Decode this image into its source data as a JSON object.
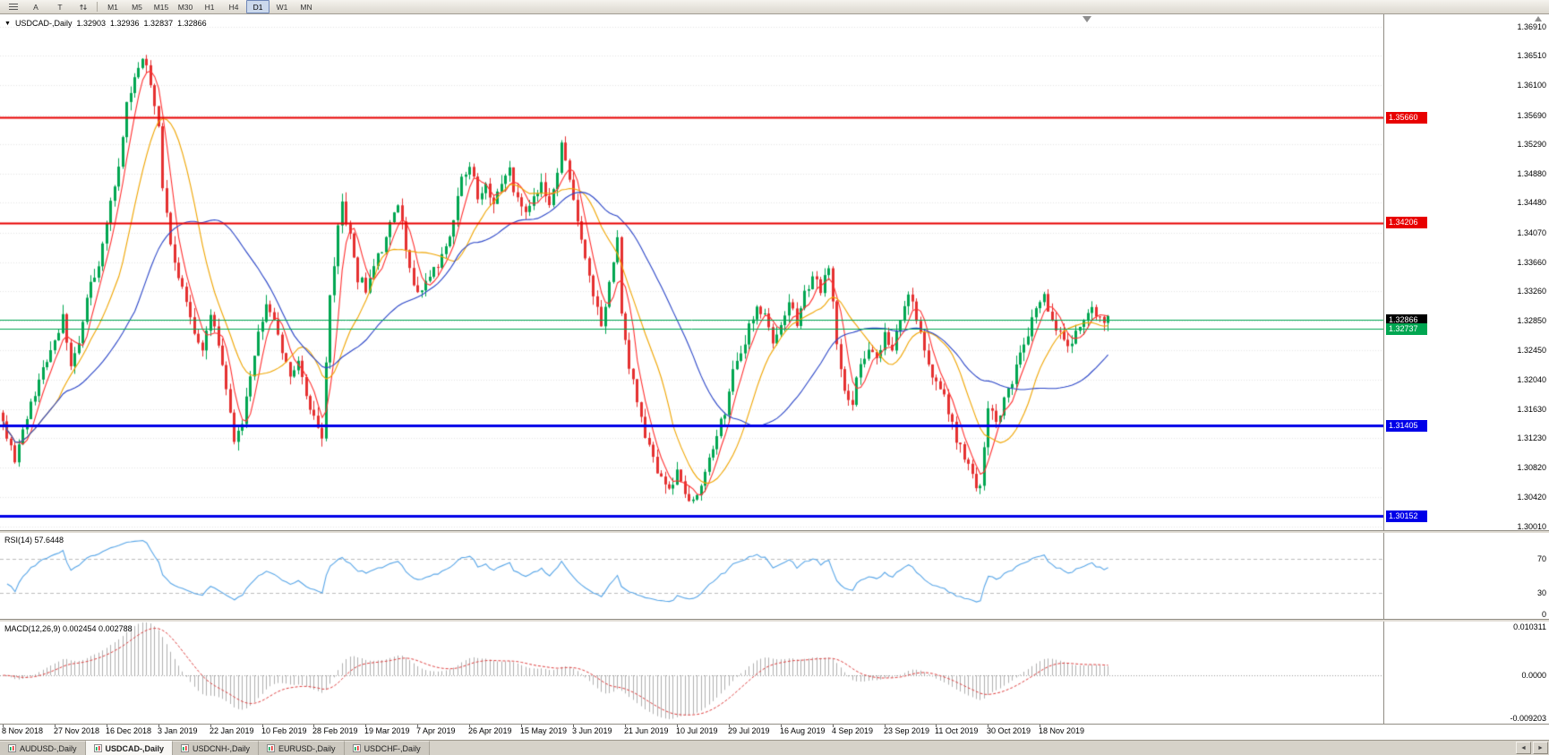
{
  "toolbar": {
    "timeframes": [
      "M1",
      "M5",
      "M15",
      "M30",
      "H1",
      "H4",
      "D1",
      "W1",
      "MN"
    ],
    "active_timeframe": "D1",
    "text_tool_label": "A",
    "type_tool_label": "T"
  },
  "symbol_header": {
    "marker": "▼",
    "symbol": "USDCAD-,Daily",
    "open": "1.32903",
    "high": "1.32936",
    "low": "1.32837",
    "close": "1.32866"
  },
  "price_scale": {
    "ticks": [
      "1.36910",
      "1.36510",
      "1.36100",
      "1.35690",
      "1.35290",
      "1.34880",
      "1.34480",
      "1.34070",
      "1.33660",
      "1.33260",
      "1.32850",
      "1.32450",
      "1.32040",
      "1.31630",
      "1.31230",
      "1.30820",
      "1.30420",
      "1.30010"
    ]
  },
  "indicators": {
    "rsi": {
      "label": "RSI(14) 57.6448",
      "period": 14,
      "levels": [
        "70",
        "30",
        "0"
      ]
    },
    "macd": {
      "label": "MACD(12,26,9) 0.002454 0.002788",
      "scale_max": "0.010311",
      "scale_zero": "0.0000",
      "scale_min": "-0.009203"
    }
  },
  "date_axis": [
    "8 Nov 2018",
    "27 Nov 2018",
    "16 Dec 2018",
    "3 Jan 2019",
    "22 Jan 2019",
    "10 Feb 2019",
    "28 Feb 2019",
    "19 Mar 2019",
    "7 Apr 2019",
    "26 Apr 2019",
    "15 May 2019",
    "3 Jun 2019",
    "21 Jun 2019",
    "10 Jul 2019",
    "29 Jul 2019",
    "16 Aug 2019",
    "4 Sep 2019",
    "23 Sep 2019",
    "11 Oct 2019",
    "30 Oct 2019",
    "18 Nov 2019"
  ],
  "tabs": {
    "items": [
      "AUDUSD-,Daily",
      "USDCAD-,Daily",
      "USDCNH-,Daily",
      "EURUSD-,Daily",
      "USDCHF-,Daily"
    ],
    "active_index": 1
  },
  "chart_data": {
    "type": "candlestick",
    "symbol": "USDCAD",
    "timeframe": "Daily",
    "candle_count": 278,
    "ylim": [
      1.2996,
      1.37083
    ],
    "bull_color": "#00A651",
    "bear_color": "#E53030",
    "grid_color": "#E6E6E6",
    "rsi_color": "#58A6E8",
    "macd_hist_color": "#B0B0B0",
    "macd_signal_color": "#E04040",
    "moving_averages": [
      {
        "name": "fast-ma",
        "period": 5,
        "color": "#FF3131"
      },
      {
        "name": "mid-ma",
        "period": 14,
        "color": "#F0A500"
      },
      {
        "name": "slow-ma",
        "period": 34,
        "color": "#2B46C8"
      }
    ],
    "hlines": [
      {
        "label": "1.35660",
        "price": 1.3566,
        "color": "#E80000",
        "width": 2,
        "badge": true,
        "badge_color": "#E80000"
      },
      {
        "label": "1.34206",
        "price": 1.34206,
        "color": "#E80000",
        "width": 2,
        "badge": true,
        "badge_color": "#E80000"
      },
      {
        "label": "1.32870",
        "price": 1.3287,
        "color": "#00A651",
        "width": 1,
        "badge": false
      },
      {
        "label": "1.32866",
        "price": 1.32866,
        "color": "#000000",
        "width": 0,
        "badge": true,
        "badge_color": "#000000"
      },
      {
        "label": "1.32737",
        "price": 1.32737,
        "color": "#00A651",
        "width": 1,
        "badge": true,
        "badge_color": "#00A651"
      },
      {
        "label": "1.31405",
        "price": 1.31405,
        "color": "#0000E8",
        "width": 3,
        "badge": true,
        "badge_color": "#0000E8"
      },
      {
        "label": "1.30152",
        "price": 1.30152,
        "color": "#0000E8",
        "width": 3,
        "badge": true,
        "badge_color": "#0000E8"
      }
    ],
    "price_anchors": [
      [
        0,
        1.314
      ],
      [
        3,
        1.3095
      ],
      [
        5,
        1.313
      ],
      [
        8,
        1.3185
      ],
      [
        11,
        1.3235
      ],
      [
        13,
        1.3255
      ],
      [
        15,
        1.329
      ],
      [
        17,
        1.3215
      ],
      [
        19,
        1.3255
      ],
      [
        21,
        1.332
      ],
      [
        23,
        1.335
      ],
      [
        25,
        1.3385
      ],
      [
        27,
        1.3445
      ],
      [
        29,
        1.3505
      ],
      [
        31,
        1.358
      ],
      [
        33,
        1.3625
      ],
      [
        35,
        1.365
      ],
      [
        37,
        1.3615
      ],
      [
        39,
        1.356
      ],
      [
        40,
        1.347
      ],
      [
        42,
        1.3395
      ],
      [
        44,
        1.3345
      ],
      [
        46,
        1.3305
      ],
      [
        48,
        1.3265
      ],
      [
        50,
        1.3245
      ],
      [
        52,
        1.3295
      ],
      [
        54,
        1.325
      ],
      [
        56,
        1.3195
      ],
      [
        58,
        1.312
      ],
      [
        60,
        1.3145
      ],
      [
        62,
        1.3205
      ],
      [
        64,
        1.327
      ],
      [
        66,
        1.331
      ],
      [
        68,
        1.328
      ],
      [
        70,
        1.324
      ],
      [
        72,
        1.3215
      ],
      [
        74,
        1.323
      ],
      [
        76,
        1.3185
      ],
      [
        78,
        1.315
      ],
      [
        80,
        1.3125
      ],
      [
        82,
        1.332
      ],
      [
        84,
        1.341
      ],
      [
        85,
        1.3445
      ],
      [
        87,
        1.3405
      ],
      [
        89,
        1.3345
      ],
      [
        91,
        1.333
      ],
      [
        93,
        1.3365
      ],
      [
        95,
        1.3385
      ],
      [
        97,
        1.3425
      ],
      [
        99,
        1.3445
      ],
      [
        101,
        1.339
      ],
      [
        103,
        1.334
      ],
      [
        105,
        1.332
      ],
      [
        107,
        1.335
      ],
      [
        109,
        1.336
      ],
      [
        111,
        1.339
      ],
      [
        113,
        1.3425
      ],
      [
        115,
        1.348
      ],
      [
        117,
        1.35
      ],
      [
        119,
        1.3455
      ],
      [
        121,
        1.347
      ],
      [
        123,
        1.3445
      ],
      [
        125,
        1.347
      ],
      [
        127,
        1.349
      ],
      [
        129,
        1.345
      ],
      [
        131,
        1.3435
      ],
      [
        133,
        1.3455
      ],
      [
        135,
        1.347
      ],
      [
        137,
        1.3445
      ],
      [
        139,
        1.3495
      ],
      [
        140,
        1.353
      ],
      [
        142,
        1.348
      ],
      [
        144,
        1.342
      ],
      [
        146,
        1.337
      ],
      [
        148,
        1.332
      ],
      [
        150,
        1.3275
      ],
      [
        152,
        1.334
      ],
      [
        154,
        1.3405
      ],
      [
        155,
        1.3295
      ],
      [
        157,
        1.3225
      ],
      [
        159,
        1.317
      ],
      [
        161,
        1.3125
      ],
      [
        163,
        1.309
      ],
      [
        165,
        1.307
      ],
      [
        167,
        1.305
      ],
      [
        169,
        1.3075
      ],
      [
        171,
        1.3045
      ],
      [
        173,
        1.3035
      ],
      [
        175,
        1.306
      ],
      [
        177,
        1.309
      ],
      [
        179,
        1.3125
      ],
      [
        181,
        1.316
      ],
      [
        183,
        1.3215
      ],
      [
        185,
        1.324
      ],
      [
        187,
        1.3275
      ],
      [
        189,
        1.331
      ],
      [
        191,
        1.329
      ],
      [
        193,
        1.326
      ],
      [
        195,
        1.328
      ],
      [
        197,
        1.3305
      ],
      [
        199,
        1.3285
      ],
      [
        201,
        1.332
      ],
      [
        203,
        1.334
      ],
      [
        205,
        1.333
      ],
      [
        207,
        1.3365
      ],
      [
        209,
        1.3255
      ],
      [
        211,
        1.319
      ],
      [
        213,
        1.3175
      ],
      [
        215,
        1.3225
      ],
      [
        217,
        1.325
      ],
      [
        219,
        1.323
      ],
      [
        221,
        1.3265
      ],
      [
        223,
        1.3245
      ],
      [
        225,
        1.3285
      ],
      [
        227,
        1.332
      ],
      [
        229,
        1.329
      ],
      [
        231,
        1.325
      ],
      [
        233,
        1.321
      ],
      [
        235,
        1.3195
      ],
      [
        237,
        1.316
      ],
      [
        239,
        1.312
      ],
      [
        241,
        1.3095
      ],
      [
        243,
        1.307
      ],
      [
        245,
        1.305
      ],
      [
        247,
        1.3165
      ],
      [
        249,
        1.3145
      ],
      [
        251,
        1.3175
      ],
      [
        253,
        1.3205
      ],
      [
        255,
        1.324
      ],
      [
        257,
        1.327
      ],
      [
        259,
        1.33
      ],
      [
        261,
        1.3315
      ],
      [
        263,
        1.329
      ],
      [
        265,
        1.3265
      ],
      [
        267,
        1.3245
      ],
      [
        269,
        1.327
      ],
      [
        271,
        1.329
      ],
      [
        273,
        1.3305
      ],
      [
        275,
        1.329
      ],
      [
        277,
        1.3287
      ]
    ]
  }
}
